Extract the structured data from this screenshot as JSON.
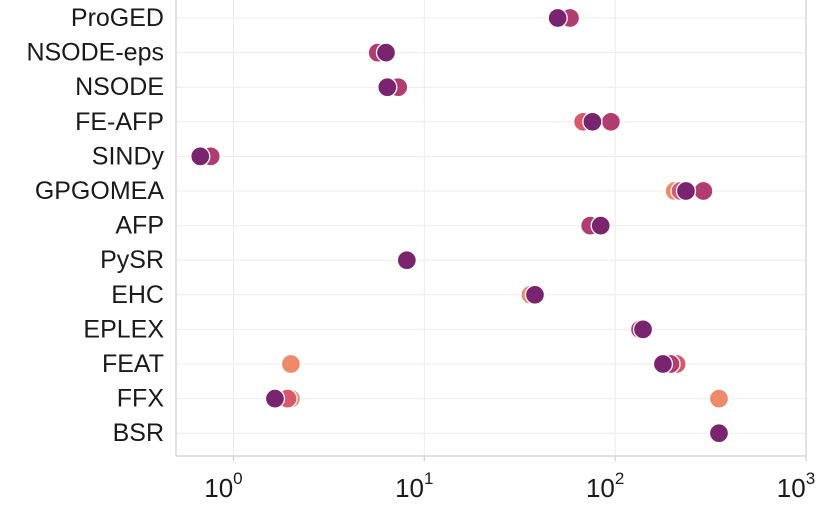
{
  "chart_data": {
    "type": "scatter",
    "title": "",
    "xlabel": "",
    "ylabel": "",
    "xscale": "log",
    "xlim": [
      0.5,
      1000
    ],
    "grid": true,
    "legend": "none",
    "x_ticks": [
      {
        "base": "10",
        "exp": "0"
      },
      {
        "base": "10",
        "exp": "1"
      },
      {
        "base": "10",
        "exp": "2"
      },
      {
        "base": "10",
        "exp": "3"
      }
    ],
    "categories": [
      "ProGED",
      "NSODE-eps",
      "NSODE",
      "FE-AFP",
      "SINDy",
      "GPGOMEA",
      "AFP",
      "PySR",
      "EHC",
      "EPLEX",
      "FEAT",
      "FFX",
      "BSR"
    ],
    "palette": [
      "#ee8a6a",
      "#d9596a",
      "#b13c6f",
      "#7a2470"
    ],
    "points": [
      {
        "category": "ProGED",
        "x": 58,
        "color": "#b13c6f"
      },
      {
        "category": "ProGED",
        "x": 50,
        "color": "#7a2470"
      },
      {
        "category": "NSODE-eps",
        "x": 5.7,
        "color": "#b13c6f"
      },
      {
        "category": "NSODE-eps",
        "x": 6.3,
        "color": "#7a2470"
      },
      {
        "category": "NSODE",
        "x": 7.3,
        "color": "#b13c6f"
      },
      {
        "category": "NSODE",
        "x": 6.4,
        "color": "#7a2470"
      },
      {
        "category": "FE-AFP",
        "x": 68,
        "color": "#d9596a"
      },
      {
        "category": "FE-AFP",
        "x": 95,
        "color": "#b13c6f"
      },
      {
        "category": "FE-AFP",
        "x": 76,
        "color": "#7a2470"
      },
      {
        "category": "SINDy",
        "x": 0.76,
        "color": "#b13c6f"
      },
      {
        "category": "SINDy",
        "x": 0.67,
        "color": "#7a2470"
      },
      {
        "category": "GPGOMEA",
        "x": 205,
        "color": "#ee8a6a"
      },
      {
        "category": "GPGOMEA",
        "x": 220,
        "color": "#d9596a"
      },
      {
        "category": "GPGOMEA",
        "x": 290,
        "color": "#b13c6f"
      },
      {
        "category": "GPGOMEA",
        "x": 235,
        "color": "#7a2470"
      },
      {
        "category": "AFP",
        "x": 74,
        "color": "#b13c6f"
      },
      {
        "category": "AFP",
        "x": 84,
        "color": "#7a2470"
      },
      {
        "category": "PySR",
        "x": 8.1,
        "color": "#7a2470"
      },
      {
        "category": "EHC",
        "x": 36,
        "color": "#ee8a6a"
      },
      {
        "category": "EHC",
        "x": 38,
        "color": "#7a2470"
      },
      {
        "category": "EPLEX",
        "x": 135,
        "color": "#b13c6f"
      },
      {
        "category": "EPLEX",
        "x": 140,
        "color": "#7a2470"
      },
      {
        "category": "FEAT",
        "x": 2.0,
        "color": "#ee8a6a"
      },
      {
        "category": "FEAT",
        "x": 210,
        "color": "#d9596a"
      },
      {
        "category": "FEAT",
        "x": 195,
        "color": "#b13c6f"
      },
      {
        "category": "FEAT",
        "x": 178,
        "color": "#7a2470"
      },
      {
        "category": "FFX",
        "x": 2.0,
        "color": "#ee8a6a"
      },
      {
        "category": "FFX",
        "x": 1.92,
        "color": "#d9596a"
      },
      {
        "category": "FFX",
        "x": 350,
        "color": "#ee8a6a"
      },
      {
        "category": "FFX",
        "x": 1.65,
        "color": "#7a2470"
      },
      {
        "category": "BSR",
        "x": 350,
        "color": "#7a2470"
      }
    ]
  }
}
